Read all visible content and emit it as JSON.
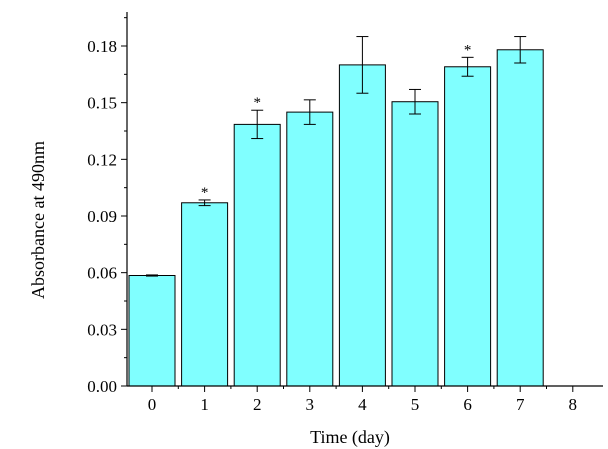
{
  "chart_data": {
    "type": "bar",
    "title": "",
    "xlabel": "Time (day)",
    "ylabel": "Absorbance at 490nm",
    "categories": [
      "0",
      "1",
      "2",
      "3",
      "4",
      "5",
      "6",
      "7"
    ],
    "x_ticks": [
      "0",
      "1",
      "2",
      "3",
      "4",
      "5",
      "6",
      "7",
      "8"
    ],
    "values": [
      0.0585,
      0.097,
      0.1385,
      0.145,
      0.17,
      0.1505,
      0.169,
      0.178
    ],
    "errors": [
      0.0003,
      0.0015,
      0.0075,
      0.0065,
      0.015,
      0.0065,
      0.005,
      0.007
    ],
    "significance": [
      "",
      "*",
      "*",
      "",
      "",
      "",
      "*",
      ""
    ],
    "y_ticks": [
      "0.00",
      "0.03",
      "0.06",
      "0.09",
      "0.12",
      "0.15",
      "0.18"
    ],
    "xlim": [
      -1,
      8
    ],
    "ylim": [
      0,
      0.198
    ],
    "bar_color": "#80ffff",
    "grid": false,
    "legend": "none"
  }
}
